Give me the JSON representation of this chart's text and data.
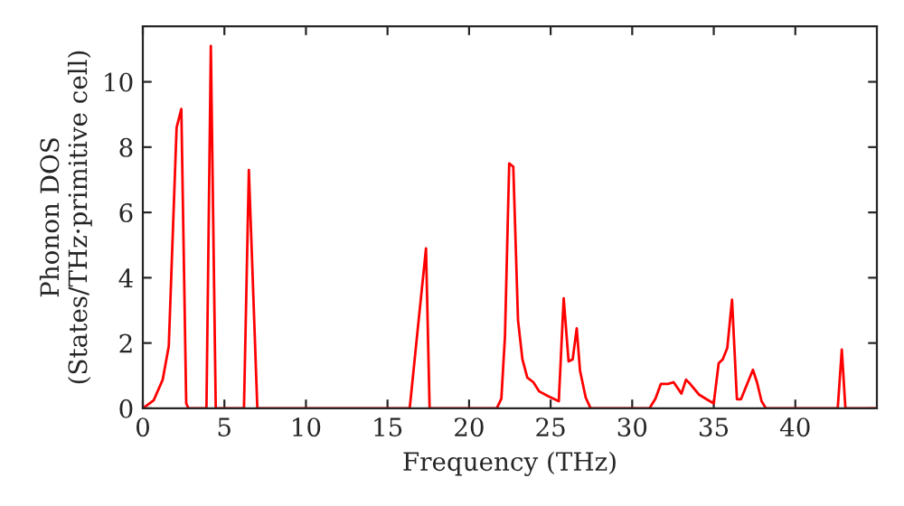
{
  "chart_data": {
    "type": "line",
    "xlabel": "Frequency (THz)",
    "ylabel": "Phonon DOS\n(States/THz·primitive cell)",
    "xlim": [
      0,
      45
    ],
    "ylim": [
      0,
      11.7
    ],
    "xticks": [
      0,
      5,
      10,
      15,
      20,
      25,
      30,
      35,
      40
    ],
    "yticks": [
      0,
      2,
      4,
      6,
      8,
      10
    ],
    "grid": false,
    "marker": "none",
    "line_style": "solid",
    "series": [
      {
        "color": "#ff0000",
        "x": [
          0,
          0.66,
          1.22,
          1.59,
          2.07,
          2.36,
          2.66,
          2.8,
          3.9,
          4.17,
          4.47,
          6.2,
          6.5,
          7.02,
          16.36,
          16.84,
          17.36,
          17.58,
          21.7,
          21.98,
          22.2,
          22.46,
          22.71,
          23.0,
          23.27,
          23.57,
          23.94,
          24.3,
          24.85,
          25.5,
          25.8,
          26.1,
          26.35,
          26.6,
          26.8,
          27.15,
          27.45,
          31.06,
          31.43,
          31.76,
          32.2,
          32.54,
          33.02,
          33.3,
          33.55,
          34.1,
          34.55,
          35.0,
          35.3,
          35.55,
          35.83,
          36.12,
          36.42,
          36.67,
          37.4,
          37.65,
          37.93,
          38.2,
          42.6,
          42.85,
          43.07,
          45
        ],
        "values": [
          0,
          0.24,
          0.88,
          1.9,
          8.6,
          9.17,
          0.15,
          0,
          0,
          11.1,
          0,
          0,
          7.3,
          0,
          0,
          2.36,
          4.9,
          0,
          0,
          0.3,
          2.2,
          7.5,
          7.4,
          2.7,
          1.5,
          0.94,
          0.8,
          0.52,
          0.37,
          0.22,
          3.37,
          1.44,
          1.5,
          2.45,
          1.16,
          0.33,
          0,
          0,
          0.3,
          0.75,
          0.75,
          0.8,
          0.45,
          0.88,
          0.75,
          0.42,
          0.28,
          0.15,
          1.38,
          1.5,
          1.85,
          3.33,
          0.28,
          0.28,
          1.18,
          0.8,
          0.22,
          0,
          0,
          1.8,
          0,
          0
        ]
      }
    ]
  }
}
